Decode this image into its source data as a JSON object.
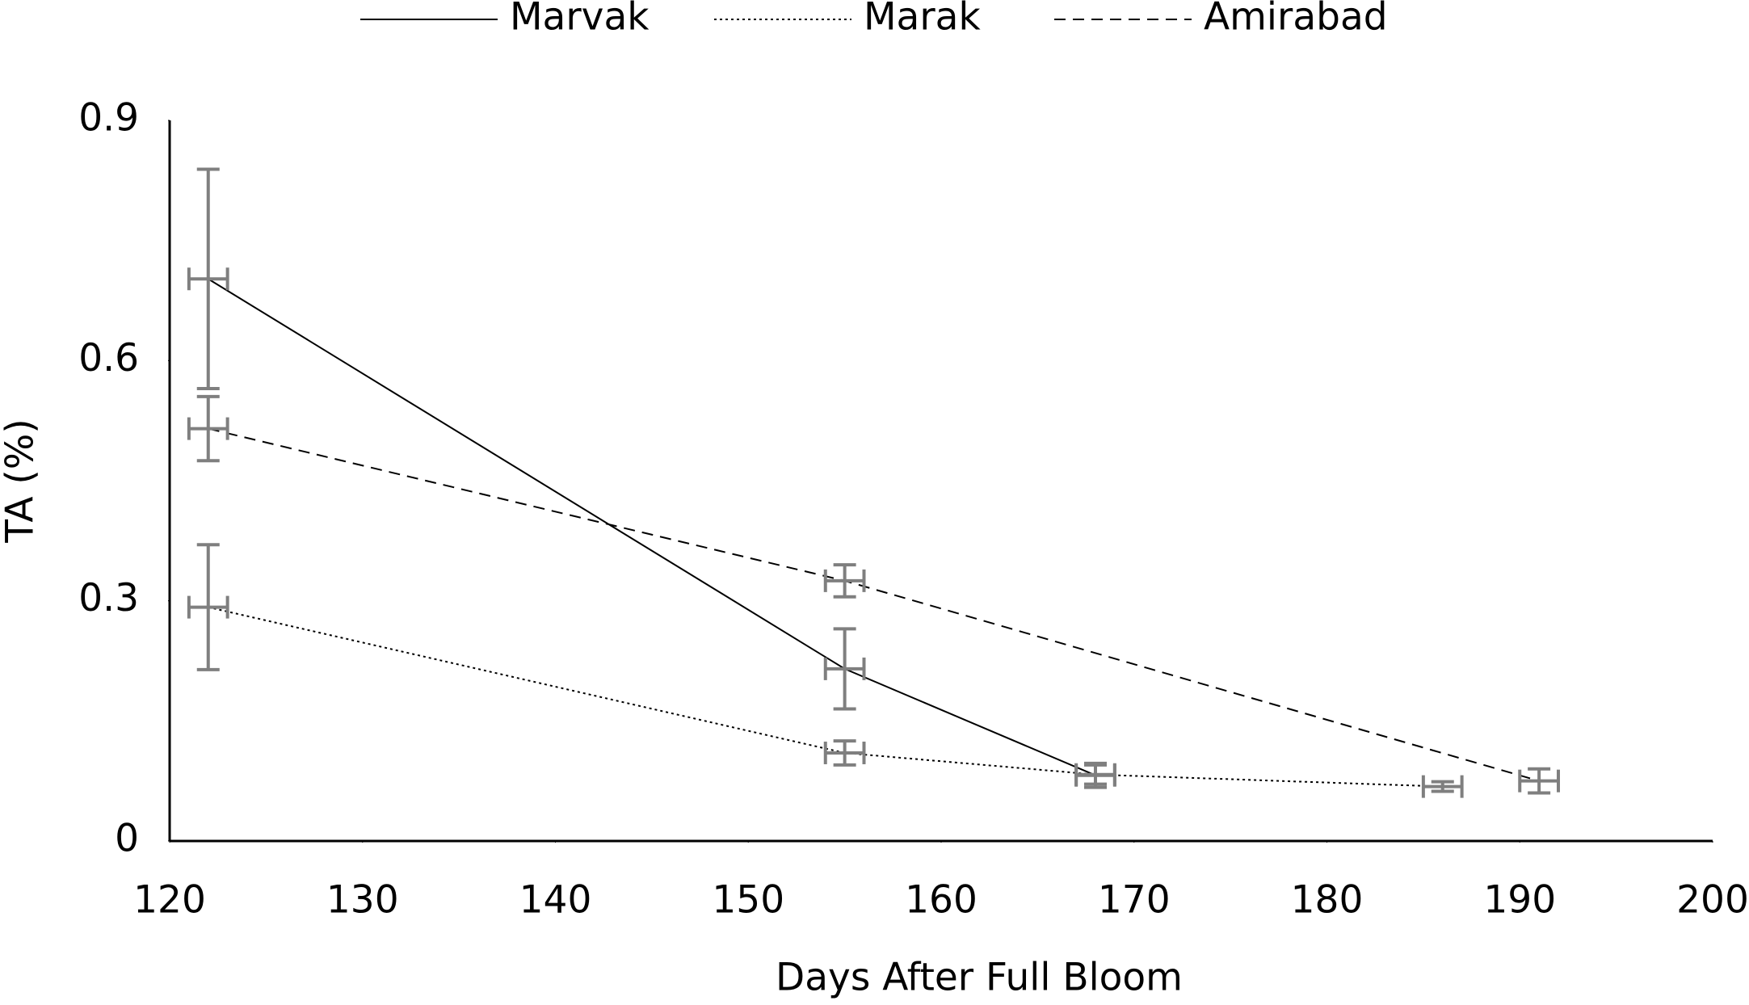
{
  "chart_data": {
    "type": "line",
    "x_label": "Days After Full Bloom",
    "y_label": "TA (%)",
    "xlim": [
      120,
      200
    ],
    "xticks": [
      120,
      130,
      140,
      150,
      160,
      170,
      180,
      190,
      200
    ],
    "ylim": [
      0,
      0.9
    ],
    "yticks": [
      0,
      0.3,
      0.6,
      0.9
    ],
    "legend": "top",
    "error_color": "#7f7f7f",
    "series": [
      {
        "name": "Marvak",
        "color": "#000000",
        "dash": "solid",
        "x": [
          122,
          155,
          168
        ],
        "values": [
          0.702,
          0.215,
          0.082
        ],
        "y_errors": [
          0.137,
          0.05,
          0.015
        ],
        "x_errors": [
          1,
          1,
          1
        ]
      },
      {
        "name": "Marak",
        "color": "#000000",
        "dash": "dotted",
        "x": [
          122,
          155,
          168,
          186
        ],
        "values": [
          0.292,
          0.11,
          0.083,
          0.068
        ],
        "y_errors": [
          0.078,
          0.015,
          0.012,
          0.006
        ],
        "x_errors": [
          1,
          1,
          1,
          1
        ]
      },
      {
        "name": "Amirabad",
        "color": "#000000",
        "dash": "dashed",
        "x": [
          122,
          155,
          191
        ],
        "values": [
          0.515,
          0.325,
          0.075
        ],
        "y_errors": [
          0.04,
          0.02,
          0.015
        ],
        "x_errors": [
          1,
          1,
          1
        ]
      }
    ]
  }
}
